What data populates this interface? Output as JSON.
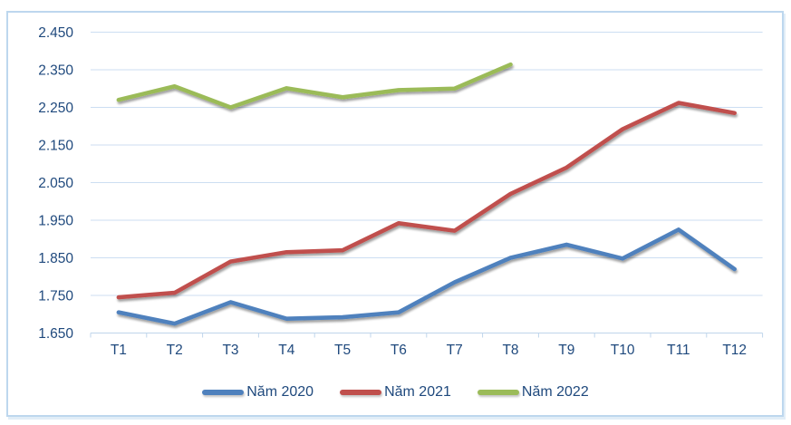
{
  "colors": {
    "axis_text": "#1F497D",
    "gridline": "#CCDEF2",
    "axis_line": "#BFD5EB",
    "frame_border": "#BDD7EE",
    "background": "#FFFFFF"
  },
  "chart_data": {
    "type": "line",
    "title": "",
    "xlabel": "",
    "ylabel": "",
    "categories": [
      "T1",
      "T2",
      "T3",
      "T4",
      "T5",
      "T6",
      "T7",
      "T8",
      "T9",
      "T10",
      "T11",
      "T12"
    ],
    "series": [
      {
        "name": "Năm 2020",
        "color": "#4F81BD",
        "values": [
          1.705,
          1.675,
          1.732,
          1.688,
          1.692,
          1.705,
          1.785,
          1.85,
          1.885,
          1.848,
          1.925,
          1.82
        ]
      },
      {
        "name": "Năm 2021",
        "color": "#C0504D",
        "values": [
          1.745,
          1.757,
          1.84,
          1.865,
          1.87,
          1.942,
          1.922,
          2.02,
          2.09,
          2.192,
          2.262,
          2.235
        ]
      },
      {
        "name": "Năm 2022",
        "color": "#9BBB59",
        "values": [
          2.27,
          2.306,
          2.25,
          2.301,
          2.277,
          2.296,
          2.3,
          2.364
        ]
      }
    ],
    "ylim": [
      1.65,
      2.45
    ],
    "ystep": 0.1,
    "yticks": [
      "2.450",
      "2.350",
      "2.250",
      "2.150",
      "2.050",
      "1.950",
      "1.850",
      "1.750",
      "1.650"
    ],
    "grid": true,
    "legend_position": "bottom"
  }
}
